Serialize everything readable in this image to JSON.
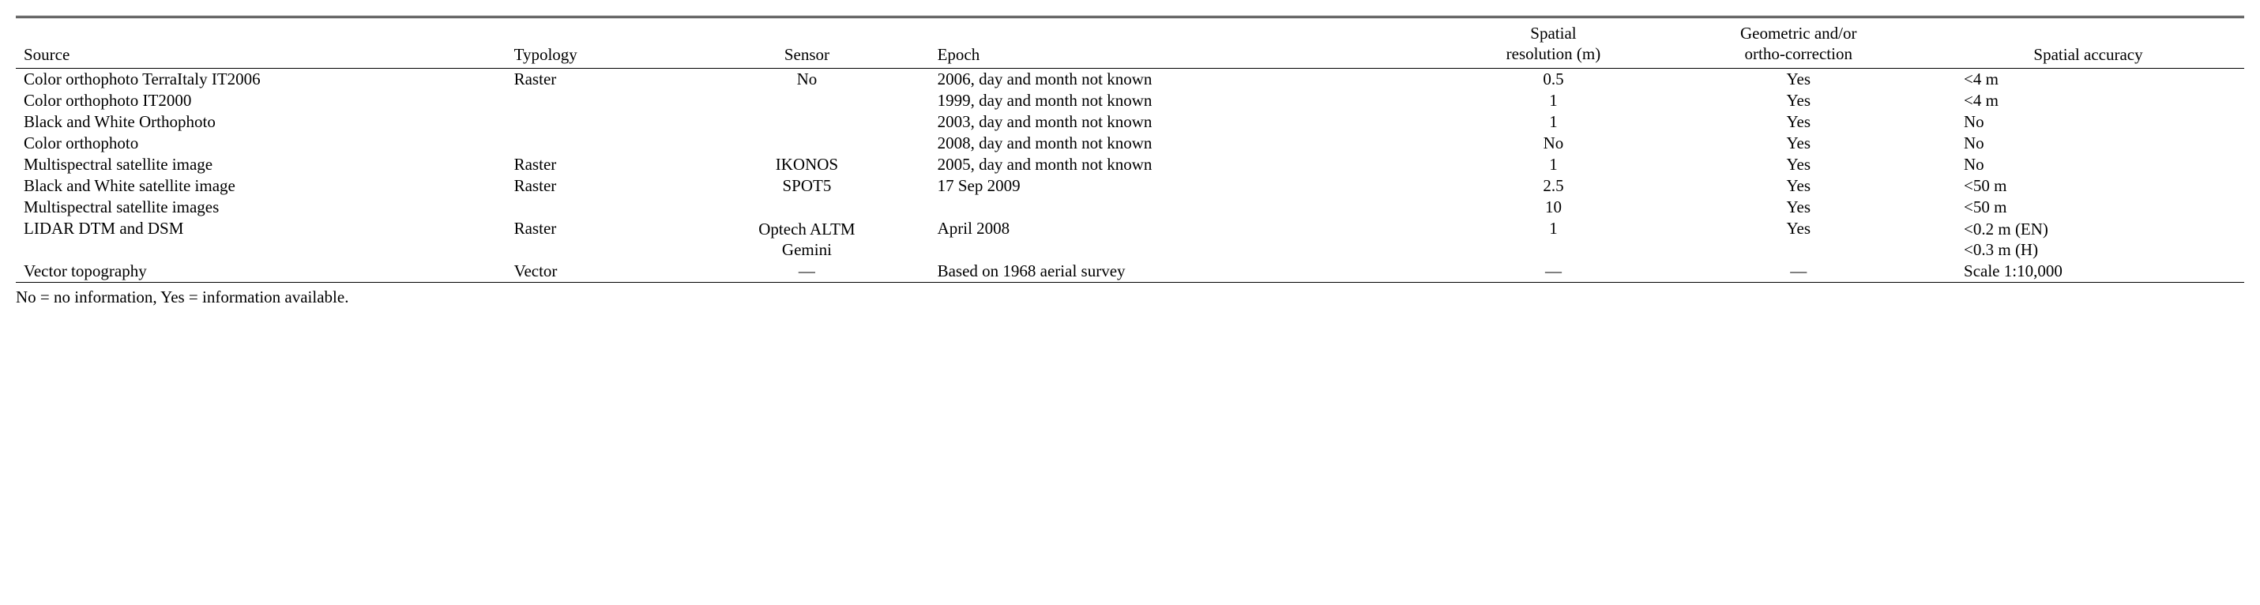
{
  "headers": {
    "source": "Source",
    "typology": "Typology",
    "sensor": "Sensor",
    "epoch": "Epoch",
    "spatial_l1": "Spatial",
    "spatial_l2": "resolution (m)",
    "geom_l1": "Geometric and/or",
    "geom_l2": "ortho-correction",
    "accuracy": "Spatial accuracy"
  },
  "rows": [
    {
      "source": "Color orthophoto TerraItaly IT2006",
      "typology": "Raster",
      "sensor": "No",
      "epoch": "2006, day and month not known",
      "spatial": "0.5",
      "geom": "Yes",
      "accuracy": "<4 m"
    },
    {
      "source": "Color orthophoto IT2000",
      "typology": "",
      "sensor": "",
      "epoch": "1999, day and month not known",
      "spatial": "1",
      "geom": "Yes",
      "accuracy": "<4 m"
    },
    {
      "source": "Black and White Orthophoto",
      "typology": "",
      "sensor": "",
      "epoch": "2003, day and month not known",
      "spatial": "1",
      "geom": "Yes",
      "accuracy": "No"
    },
    {
      "source": "Color orthophoto",
      "typology": "",
      "sensor": "",
      "epoch": "2008, day and month not known",
      "spatial": "No",
      "geom": "Yes",
      "accuracy": "No"
    },
    {
      "source": "Multispectral satellite image",
      "typology": "Raster",
      "sensor": "IKONOS",
      "epoch": "2005, day and month not known",
      "spatial": "1",
      "geom": "Yes",
      "accuracy": "No"
    },
    {
      "source": "Black and White satellite image",
      "typology": "Raster",
      "sensor": "SPOT5",
      "epoch": "17 Sep 2009",
      "spatial": "2.5",
      "geom": "Yes",
      "accuracy": "<50 m"
    },
    {
      "source": "Multispectral satellite images",
      "typology": "",
      "sensor": "",
      "epoch": "",
      "spatial": "10",
      "geom": "Yes",
      "accuracy": "<50 m"
    },
    {
      "source": "LIDAR DTM and DSM",
      "typology": "Raster",
      "sensor_l1": "Optech ALTM",
      "sensor_l2": "Gemini",
      "epoch": "April 2008",
      "spatial": "1",
      "geom": "Yes",
      "accuracy_l1": "<0.2 m (EN)",
      "accuracy_l2": "<0.3 m (H)"
    },
    {
      "source": "Vector topography",
      "typology": "Vector",
      "sensor": "—",
      "epoch": "Based on 1968 aerial survey",
      "spatial": "—",
      "geom": "—",
      "accuracy": "Scale 1:10,000"
    }
  ],
  "footnote": "No = no information, Yes = information available."
}
